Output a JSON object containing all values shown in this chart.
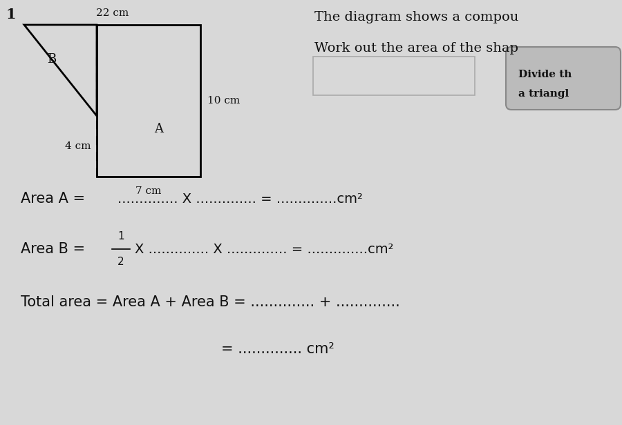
{
  "bg_color": "#d8d8d8",
  "question_number": "1",
  "shape_label_22": "22 cm",
  "shape_label_10": "10 cm",
  "shape_label_7": "7 cm",
  "shape_label_4": "4 cm",
  "label_A": "A",
  "label_B": "B",
  "text_line1": "The diagram shows a compou",
  "text_line2": "Work out the area of the shap",
  "hint_line1": "Divide th",
  "hint_line2": "a triangl",
  "rect_color": "#000000",
  "text_color": "#111111",
  "hint_box_bg": "#bbbbbb",
  "hint_box_edge": "#888888",
  "ans_box_edge": "#aaaaaa",
  "fig_width": 9.0,
  "fig_height": 6.16,
  "dpi": 100
}
